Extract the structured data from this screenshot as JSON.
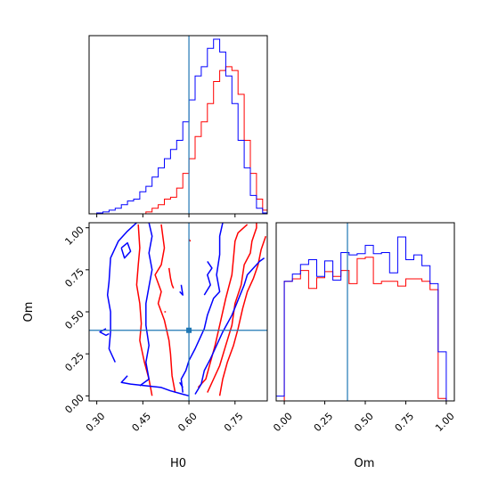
{
  "chart_data": {
    "type": "corner",
    "parameters": [
      "H0",
      "Om"
    ],
    "truths": {
      "H0": 0.6,
      "Om": 0.39
    },
    "truth_color": "#1f77b4",
    "series": [
      {
        "color": "#ff0000"
      },
      {
        "color": "#0000ff"
      }
    ],
    "marginal_H0": {
      "xlim": [
        0.275,
        0.855
      ],
      "ticks": [
        0.3,
        0.45,
        0.6,
        0.75
      ],
      "tick_labels": [
        "0.30",
        "0.45",
        "0.60",
        "0.75"
      ],
      "bin_edges": [
        0.3,
        0.32,
        0.34,
        0.36,
        0.38,
        0.4,
        0.42,
        0.44,
        0.46,
        0.48,
        0.5,
        0.52,
        0.54,
        0.56,
        0.58,
        0.6,
        0.62,
        0.64,
        0.66,
        0.68,
        0.7,
        0.72,
        0.74,
        0.76,
        0.78,
        0.8,
        0.82,
        0.84,
        0.86
      ],
      "red_counts": [
        0,
        0,
        0,
        0,
        0,
        0,
        0,
        0,
        1,
        3,
        5,
        8,
        9,
        14,
        22,
        30,
        42,
        50,
        60,
        72,
        78,
        80,
        78,
        65,
        40,
        22,
        8,
        2
      ],
      "blue_counts": [
        0.5,
        1,
        2,
        3,
        5,
        7,
        8,
        12,
        15,
        20,
        25,
        30,
        35,
        40,
        50,
        62,
        75,
        80,
        90,
        95,
        88,
        75,
        60,
        40,
        25,
        10,
        3,
        0.5
      ]
    },
    "marginal_Om": {
      "xlim": [
        -0.05,
        1.05
      ],
      "ticks": [
        0.0,
        0.25,
        0.5,
        0.75,
        1.0
      ],
      "tick_labels": [
        "0.00",
        "0.25",
        "0.50",
        "0.75",
        "1.00"
      ],
      "bin_edges": [
        -0.05,
        0.0,
        0.05,
        0.1,
        0.15,
        0.2,
        0.25,
        0.3,
        0.35,
        0.4,
        0.45,
        0.5,
        0.55,
        0.6,
        0.65,
        0.7,
        0.75,
        0.8,
        0.85,
        0.9,
        0.95,
        1.0,
        1.05
      ],
      "red_counts": [
        0,
        10,
        10.2,
        10.9,
        9.4,
        10.3,
        10.8,
        10.4,
        10.9,
        9.8,
        11.9,
        12.0,
        9.8,
        10.0,
        10.0,
        9.6,
        10.2,
        10.2,
        10.0,
        9.3,
        0.2,
        0
      ],
      "blue_counts": [
        0.4,
        10.0,
        10.6,
        11.4,
        11.8,
        10.4,
        11.7,
        10.1,
        12.4,
        12.2,
        12.3,
        13.0,
        12.3,
        12.4,
        10.7,
        13.7,
        11.8,
        12.2,
        11.3,
        9.8,
        4.1,
        0
      ]
    },
    "joint": {
      "xlim": [
        0.275,
        0.855
      ],
      "ylim": [
        -0.03,
        1.03
      ],
      "yticks": [
        0.0,
        0.25,
        0.5,
        0.75,
        1.0
      ],
      "ytick_labels": [
        "0.00",
        "0.25",
        "0.50",
        "0.75",
        "1.00"
      ],
      "red_contours": [
        [
          [
            0.48,
            0.0
          ],
          [
            0.47,
            0.1
          ],
          [
            0.455,
            0.2
          ],
          [
            0.44,
            0.33
          ],
          [
            0.445,
            0.43
          ],
          [
            0.44,
            0.55
          ],
          [
            0.43,
            0.66
          ],
          [
            0.435,
            0.78
          ],
          [
            0.44,
            0.88
          ],
          [
            0.435,
            1.02
          ]
        ],
        [
          [
            0.555,
            0.02
          ],
          [
            0.545,
            0.12
          ],
          [
            0.54,
            0.25
          ],
          [
            0.535,
            0.33
          ],
          [
            0.52,
            0.45
          ],
          [
            0.5,
            0.55
          ],
          [
            0.51,
            0.62
          ],
          [
            0.49,
            0.72
          ],
          [
            0.51,
            0.78
          ],
          [
            0.52,
            0.88
          ],
          [
            0.51,
            1.02
          ]
        ],
        [
          [
            0.63,
            0.05
          ],
          [
            0.655,
            0.1
          ],
          [
            0.67,
            0.2
          ],
          [
            0.685,
            0.3
          ],
          [
            0.7,
            0.42
          ],
          [
            0.72,
            0.58
          ],
          [
            0.74,
            0.72
          ],
          [
            0.745,
            0.82
          ],
          [
            0.75,
            0.92
          ],
          [
            0.76,
            0.97
          ],
          [
            0.79,
            1.02
          ]
        ],
        [
          [
            0.66,
            0.02
          ],
          [
            0.68,
            0.1
          ],
          [
            0.7,
            0.18
          ],
          [
            0.72,
            0.3
          ],
          [
            0.74,
            0.42
          ],
          [
            0.75,
            0.55
          ],
          [
            0.77,
            0.66
          ],
          [
            0.78,
            0.78
          ],
          [
            0.8,
            0.85
          ],
          [
            0.805,
            0.92
          ],
          [
            0.82,
            1.0
          ],
          [
            0.82,
            1.03
          ]
        ],
        [
          [
            0.7,
            0.0
          ],
          [
            0.71,
            0.1
          ],
          [
            0.725,
            0.2
          ],
          [
            0.745,
            0.3
          ],
          [
            0.76,
            0.4
          ],
          [
            0.775,
            0.52
          ],
          [
            0.79,
            0.62
          ],
          [
            0.81,
            0.7
          ],
          [
            0.825,
            0.78
          ],
          [
            0.835,
            0.87
          ],
          [
            0.85,
            0.95
          ]
        ],
        [
          [
            0.535,
            0.76
          ],
          [
            0.54,
            0.7
          ],
          [
            0.545,
            0.66
          ],
          [
            0.55,
            0.64
          ]
        ],
        [
          [
            0.6,
            0.93
          ],
          [
            0.605,
            0.92
          ]
        ],
        [
          [
            0.52,
            0.5
          ],
          [
            0.525,
            0.5
          ]
        ]
      ],
      "blue_contours": [
        [
          [
            0.36,
            0.2
          ],
          [
            0.34,
            0.28
          ],
          [
            0.345,
            0.38
          ],
          [
            0.345,
            0.5
          ],
          [
            0.335,
            0.6
          ],
          [
            0.34,
            0.68
          ],
          [
            0.345,
            0.82
          ],
          [
            0.37,
            0.92
          ],
          [
            0.4,
            0.98
          ],
          [
            0.43,
            1.03
          ]
        ],
        [
          [
            0.38,
            0.88
          ],
          [
            0.39,
            0.82
          ],
          [
            0.41,
            0.86
          ],
          [
            0.4,
            0.91
          ],
          [
            0.38,
            0.88
          ]
        ],
        [
          [
            0.33,
            0.4
          ],
          [
            0.31,
            0.38
          ],
          [
            0.33,
            0.36
          ],
          [
            0.34,
            0.37
          ]
        ],
        [
          [
            0.4,
            0.12
          ],
          [
            0.38,
            0.08
          ],
          [
            0.41,
            0.07
          ],
          [
            0.46,
            0.06
          ],
          [
            0.51,
            0.05
          ],
          [
            0.54,
            0.03
          ],
          [
            0.58,
            0.01
          ],
          [
            0.6,
            0.0
          ]
        ],
        [
          [
            0.44,
            0.06
          ],
          [
            0.47,
            0.1
          ],
          [
            0.46,
            0.2
          ],
          [
            0.47,
            0.3
          ],
          [
            0.46,
            0.42
          ],
          [
            0.46,
            0.55
          ],
          [
            0.47,
            0.65
          ],
          [
            0.48,
            0.75
          ],
          [
            0.47,
            0.85
          ],
          [
            0.48,
            0.95
          ],
          [
            0.47,
            1.03
          ]
        ],
        [
          [
            0.58,
            0.02
          ],
          [
            0.575,
            0.1
          ],
          [
            0.59,
            0.15
          ],
          [
            0.6,
            0.21
          ],
          [
            0.62,
            0.28
          ],
          [
            0.65,
            0.4
          ],
          [
            0.66,
            0.48
          ],
          [
            0.68,
            0.58
          ],
          [
            0.7,
            0.62
          ],
          [
            0.69,
            0.72
          ],
          [
            0.7,
            0.84
          ],
          [
            0.7,
            0.95
          ],
          [
            0.71,
            1.03
          ]
        ],
        [
          [
            0.62,
            0.01
          ],
          [
            0.64,
            0.07
          ],
          [
            0.65,
            0.15
          ],
          [
            0.67,
            0.22
          ],
          [
            0.69,
            0.3
          ],
          [
            0.71,
            0.38
          ],
          [
            0.74,
            0.48
          ],
          [
            0.76,
            0.57
          ],
          [
            0.78,
            0.66
          ],
          [
            0.79,
            0.72
          ],
          [
            0.81,
            0.76
          ],
          [
            0.83,
            0.8
          ],
          [
            0.845,
            0.82
          ]
        ],
        [
          [
            0.65,
            0.6
          ],
          [
            0.67,
            0.66
          ],
          [
            0.66,
            0.72
          ],
          [
            0.675,
            0.76
          ],
          [
            0.66,
            0.8
          ]
        ],
        [
          [
            0.57,
            0.62
          ],
          [
            0.58,
            0.6
          ],
          [
            0.575,
            0.66
          ]
        ],
        [
          [
            0.58,
            0.05
          ],
          [
            0.57,
            0.08
          ]
        ]
      ]
    }
  }
}
